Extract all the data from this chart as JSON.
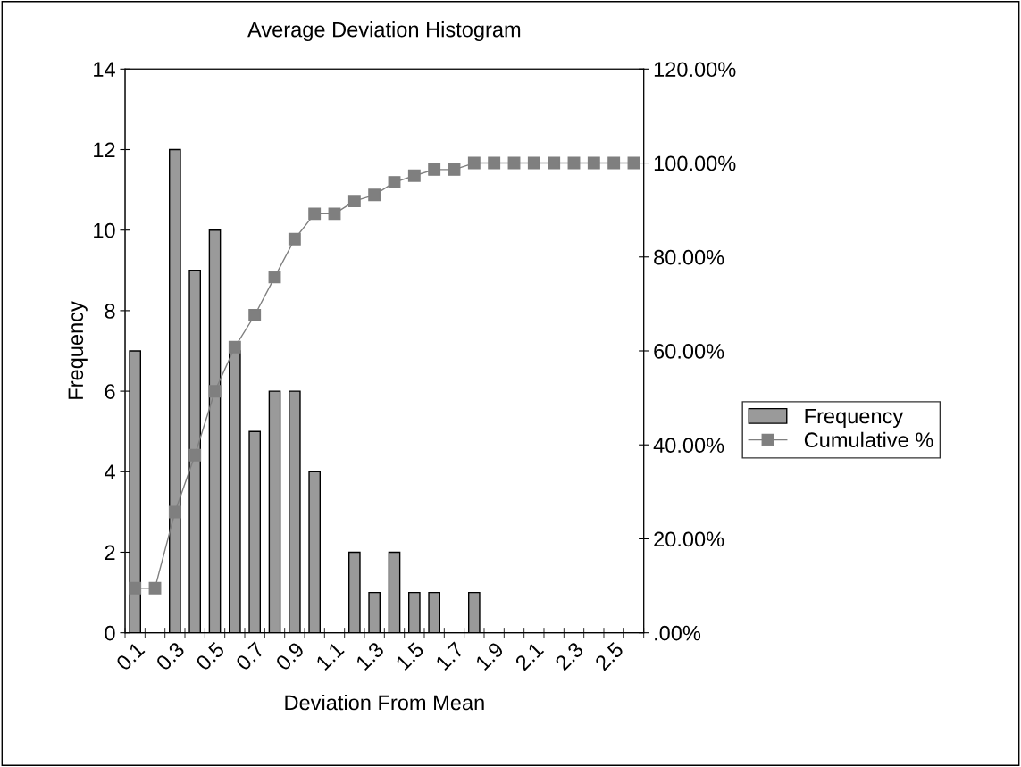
{
  "chart_data": {
    "type": "bar",
    "title": "Average Deviation Histogram",
    "xlabel": "Deviation From Mean",
    "ylabel": "Frequency",
    "categories": [
      "0.1",
      null,
      "0.3",
      null,
      "0.5",
      null,
      "0.7",
      null,
      "0.9",
      null,
      "1.1",
      null,
      "1.3",
      null,
      "1.5",
      null,
      "1.7",
      null,
      "1.9",
      null,
      "2.1",
      null,
      "2.3",
      null,
      "2.5",
      null
    ],
    "series": [
      {
        "name": "Frequency",
        "color": "#9a9a9a",
        "values": [
          7,
          0,
          12,
          9,
          10,
          7,
          5,
          6,
          6,
          4,
          0,
          2,
          1,
          2,
          1,
          1,
          0,
          1,
          0,
          0,
          0,
          0,
          0,
          0,
          0,
          0
        ]
      },
      {
        "name": "Cumulative %",
        "type": "line",
        "axis": "y2",
        "color": "#7f7f7f",
        "marker": "square",
        "values": [
          9.5,
          9.5,
          25.7,
          37.8,
          51.4,
          60.8,
          67.6,
          75.7,
          83.8,
          89.2,
          89.2,
          91.9,
          93.2,
          95.9,
          97.3,
          98.6,
          98.6,
          100,
          100,
          100,
          100,
          100,
          100,
          100,
          100,
          100
        ]
      }
    ],
    "ylim": [
      0,
      14
    ],
    "yticks": [
      0,
      2,
      4,
      6,
      8,
      10,
      12,
      14
    ],
    "y2lim": [
      0,
      120
    ],
    "y2ticks": [
      {
        "value": 0,
        "label": ".00%"
      },
      {
        "value": 20,
        "label": "20.00%"
      },
      {
        "value": 40,
        "label": "40.00%"
      },
      {
        "value": 60,
        "label": "60.00%"
      },
      {
        "value": 80,
        "label": "80.00%"
      },
      {
        "value": 100,
        "label": "100.00%"
      },
      {
        "value": 120,
        "label": "120.00%"
      }
    ],
    "grid": false,
    "legend": "right"
  }
}
